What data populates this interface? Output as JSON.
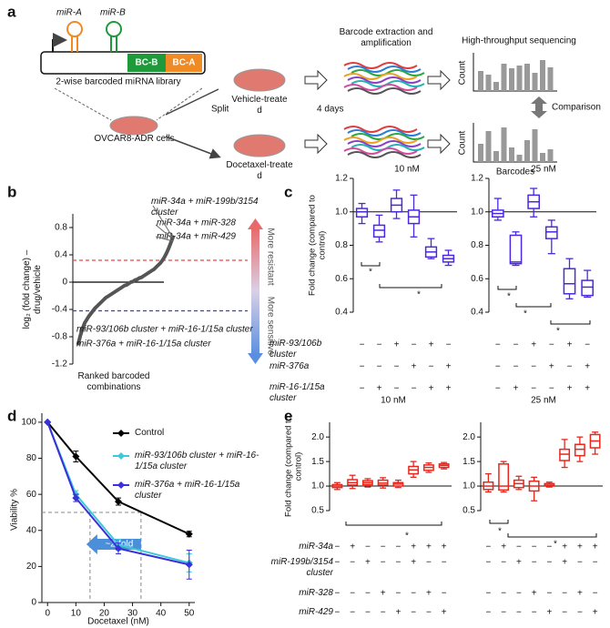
{
  "panel_labels": [
    "a",
    "b",
    "c",
    "d",
    "e"
  ],
  "diagram": {
    "mir_a": "miR-A",
    "mir_b": "miR-B",
    "bc_b": "BC-B",
    "bc_a": "BC-A",
    "library": "2-wise barcoded miRNA library",
    "cells": "OVCAR8-ADR cells",
    "split": "Split",
    "vehicle": "Vehicle-treated",
    "docetaxel": "Docetaxel-treated",
    "duration": "4 days",
    "extraction": "Barcode extraction and amplification",
    "sequencing": "High-throughput sequencing",
    "count_top": "Count",
    "count_bottom": "Count",
    "comparison": "Comparison",
    "barcodes": "Barcodes"
  },
  "chart_data": [
    {
      "type": "line",
      "ylabel": "log₂ (fold change) – drug/vehicle",
      "xlabel": "Ranked barcoded combinations",
      "values": [
        -0.9,
        -0.78,
        -0.68,
        -0.6,
        -0.55,
        -0.5,
        -0.46,
        -0.42,
        -0.38,
        -0.35,
        -0.32,
        -0.29,
        -0.26,
        -0.23,
        -0.21,
        -0.19,
        -0.17,
        -0.15,
        -0.13,
        -0.11,
        -0.09,
        -0.07,
        -0.05,
        -0.04,
        -0.02,
        0,
        0.01,
        0.03,
        0.04,
        0.06,
        0.07,
        0.09,
        0.11,
        0.13,
        0.15,
        0.17,
        0.19,
        0.22,
        0.25,
        0.28,
        0.32,
        0.37,
        0.43,
        0.5,
        0.58,
        0.66
      ],
      "color": "#555555",
      "ylim": [
        -1.2,
        1.0
      ],
      "yticks": [
        0.8,
        0.4,
        0,
        -0.4,
        -0.8,
        -1.2
      ],
      "hlines": [
        {
          "value": 0,
          "color": "#000000",
          "dashed": false
        },
        {
          "value": 0.32,
          "color": "#e8484a",
          "dashed": true
        },
        {
          "value": -0.42,
          "color": "#3a3ad6",
          "dashed": true
        }
      ],
      "annotations": [
        "miR-34a + miR-199b/3154 cluster",
        "miR-34a + miR-328",
        "miR-34a + miR-429",
        "miR-93/106b cluster + miR-16-1/15a cluster",
        "miR-376a + miR-16-1/15a cluster"
      ],
      "side_labels": [
        "More resistant",
        "More sensitive"
      ]
    },
    {
      "type": "box",
      "title": "10 nM",
      "ylabel": "Fold change (compared to control)",
      "color": "#4b28e0",
      "ylim": [
        0.4,
        1.2
      ],
      "yticks": [
        0.4,
        0.6,
        0.8,
        {
          "value": 1,
          "label": "1.0"
        },
        1.2
      ],
      "refline": 1,
      "boxes": [
        {
          "min": 0.93,
          "q1": 0.97,
          "median": 1.0,
          "q3": 1.02,
          "max": 1.05
        },
        {
          "min": 0.82,
          "q1": 0.85,
          "median": 0.89,
          "q3": 0.92,
          "max": 0.98
        },
        {
          "min": 0.96,
          "q1": 1.0,
          "median": 1.04,
          "q3": 1.08,
          "max": 1.13
        },
        {
          "min": 0.85,
          "q1": 0.93,
          "median": 0.97,
          "q3": 1.01,
          "max": 1.1
        },
        {
          "min": 0.72,
          "q1": 0.73,
          "median": 0.76,
          "q3": 0.79,
          "max": 0.84
        },
        {
          "min": 0.68,
          "q1": 0.7,
          "median": 0.72,
          "q3": 0.74,
          "max": 0.77
        }
      ],
      "annotations": [
        "*",
        "*"
      ]
    },
    {
      "type": "box",
      "title": "25 nM",
      "color": "#4b28e0",
      "ylim": [
        0.4,
        1.2
      ],
      "yticks": [
        0.4,
        0.6,
        0.8,
        {
          "value": 1,
          "label": "1.0"
        },
        1.2
      ],
      "refline": 1,
      "boxes": [
        {
          "min": 0.95,
          "q1": 0.97,
          "median": 0.99,
          "q3": 1.01,
          "max": 1.08
        },
        {
          "min": 0.68,
          "q1": 0.69,
          "median": 0.7,
          "q3": 0.86,
          "max": 0.88
        },
        {
          "min": 0.97,
          "q1": 1.02,
          "median": 1.06,
          "q3": 1.1,
          "max": 1.14
        },
        {
          "min": 0.75,
          "q1": 0.84,
          "median": 0.88,
          "q3": 0.91,
          "max": 0.95
        },
        {
          "min": 0.48,
          "q1": 0.51,
          "median": 0.57,
          "q3": 0.66,
          "max": 0.72
        },
        {
          "min": 0.49,
          "q1": 0.5,
          "median": 0.55,
          "q3": 0.59,
          "max": 0.65
        }
      ],
      "annotations": [
        "*",
        "*",
        "*"
      ]
    },
    {
      "type": "line",
      "xlabel": "Docetaxel (nM)",
      "ylabel": "Viability %",
      "x": [
        0,
        10,
        25,
        50
      ],
      "xlim": [
        -2,
        52
      ],
      "xticks": [
        0,
        10,
        20,
        30,
        40,
        50
      ],
      "ylim": [
        0,
        105
      ],
      "yticks": [
        0,
        20,
        40,
        60,
        80,
        100
      ],
      "series": [
        {
          "name": "Control",
          "color": "#000000",
          "values": [
            100,
            81,
            56,
            38
          ],
          "errors": [
            0,
            3,
            2,
            1.5
          ]
        },
        {
          "name": "miR-93/106b cluster + miR-16-1/15a cluster",
          "color": "#3ec8d8",
          "values": [
            100,
            60,
            32,
            22
          ],
          "errors": [
            0,
            2,
            3,
            5
          ]
        },
        {
          "name": "miR-376a + miR-16-1/15a cluster",
          "color": "#3a2fd8",
          "values": [
            100,
            58,
            30,
            21
          ],
          "errors": [
            0,
            2,
            3,
            8
          ]
        }
      ],
      "reference": {
        "y": 50,
        "x": [
          15,
          33
        ]
      },
      "annotation": "~2-fold"
    },
    {
      "type": "box",
      "title": "10 nM",
      "ylabel": "Fold change (compared to control)",
      "color": "#e8261c",
      "ylim": [
        0.5,
        2.3
      ],
      "yticks": [
        0.5,
        {
          "value": 1,
          "label": "1.0"
        },
        1.5,
        {
          "value": 2,
          "label": "2.0"
        }
      ],
      "refline": 1,
      "boxes": [
        {
          "min": 0.93,
          "q1": 0.97,
          "median": 1.0,
          "q3": 1.03,
          "max": 1.07
        },
        {
          "min": 0.95,
          "q1": 1.02,
          "median": 1.07,
          "q3": 1.13,
          "max": 1.22
        },
        {
          "min": 0.98,
          "q1": 1.03,
          "median": 1.07,
          "q3": 1.11,
          "max": 1.15
        },
        {
          "min": 0.96,
          "q1": 1.02,
          "median": 1.06,
          "q3": 1.12,
          "max": 1.17
        },
        {
          "min": 0.97,
          "q1": 1.0,
          "median": 1.04,
          "q3": 1.07,
          "max": 1.12
        },
        {
          "min": 1.18,
          "q1": 1.25,
          "median": 1.33,
          "q3": 1.4,
          "max": 1.5
        },
        {
          "min": 1.28,
          "q1": 1.32,
          "median": 1.38,
          "q3": 1.43,
          "max": 1.47
        },
        {
          "min": 1.35,
          "q1": 1.38,
          "median": 1.42,
          "q3": 1.45,
          "max": 1.48
        }
      ],
      "annotations": [
        "*"
      ]
    },
    {
      "type": "box",
      "title": "25 nM",
      "color": "#e8261c",
      "ylim": [
        0.5,
        2.3
      ],
      "yticks": [
        0.5,
        {
          "value": 1,
          "label": "1.0"
        },
        1.5,
        {
          "value": 2,
          "label": "2.0"
        }
      ],
      "refline": 1,
      "boxes": [
        {
          "min": 0.88,
          "q1": 0.93,
          "median": 1.0,
          "q3": 1.08,
          "max": 1.25
        },
        {
          "min": 0.88,
          "q1": 0.92,
          "median": 1.0,
          "q3": 1.45,
          "max": 1.5
        },
        {
          "min": 0.93,
          "q1": 0.97,
          "median": 1.05,
          "q3": 1.12,
          "max": 1.2
        },
        {
          "min": 0.7,
          "q1": 0.9,
          "median": 1.0,
          "q3": 1.1,
          "max": 1.18
        },
        {
          "min": 0.98,
          "q1": 1.0,
          "median": 1.02,
          "q3": 1.05,
          "max": 1.08
        },
        {
          "min": 1.38,
          "q1": 1.52,
          "median": 1.65,
          "q3": 1.75,
          "max": 1.95
        },
        {
          "min": 1.5,
          "q1": 1.62,
          "median": 1.75,
          "q3": 1.85,
          "max": 2.0
        },
        {
          "min": 1.65,
          "q1": 1.78,
          "median": 1.92,
          "q3": 2.05,
          "max": 2.1
        }
      ],
      "annotations": [
        "*",
        "*"
      ]
    }
  ],
  "conditions_c": [
    {
      "label": "miR-93/106b cluster",
      "marks": [
        "−",
        "−",
        "+",
        "−",
        "+",
        "−"
      ]
    },
    {
      "label": "miR-376a",
      "marks": [
        "−",
        "−",
        "−",
        "+",
        "−",
        "+"
      ]
    },
    {
      "label": "miR-16-1/15a cluster",
      "marks": [
        "−",
        "+",
        "−",
        "−",
        "+",
        "+"
      ]
    }
  ],
  "conditions_e": [
    {
      "label": "miR-34a",
      "marks": [
        "−",
        "+",
        "−",
        "−",
        "−",
        "+",
        "+",
        "+"
      ]
    },
    {
      "label": "miR-199b/3154 cluster",
      "marks": [
        "−",
        "−",
        "+",
        "−",
        "−",
        "+",
        "−",
        "−"
      ]
    },
    {
      "label": "miR-328",
      "marks": [
        "−",
        "−",
        "−",
        "+",
        "−",
        "−",
        "+",
        "−"
      ]
    },
    {
      "label": "miR-429",
      "marks": [
        "−",
        "−",
        "−",
        "−",
        "+",
        "−",
        "−",
        "+"
      ]
    }
  ]
}
